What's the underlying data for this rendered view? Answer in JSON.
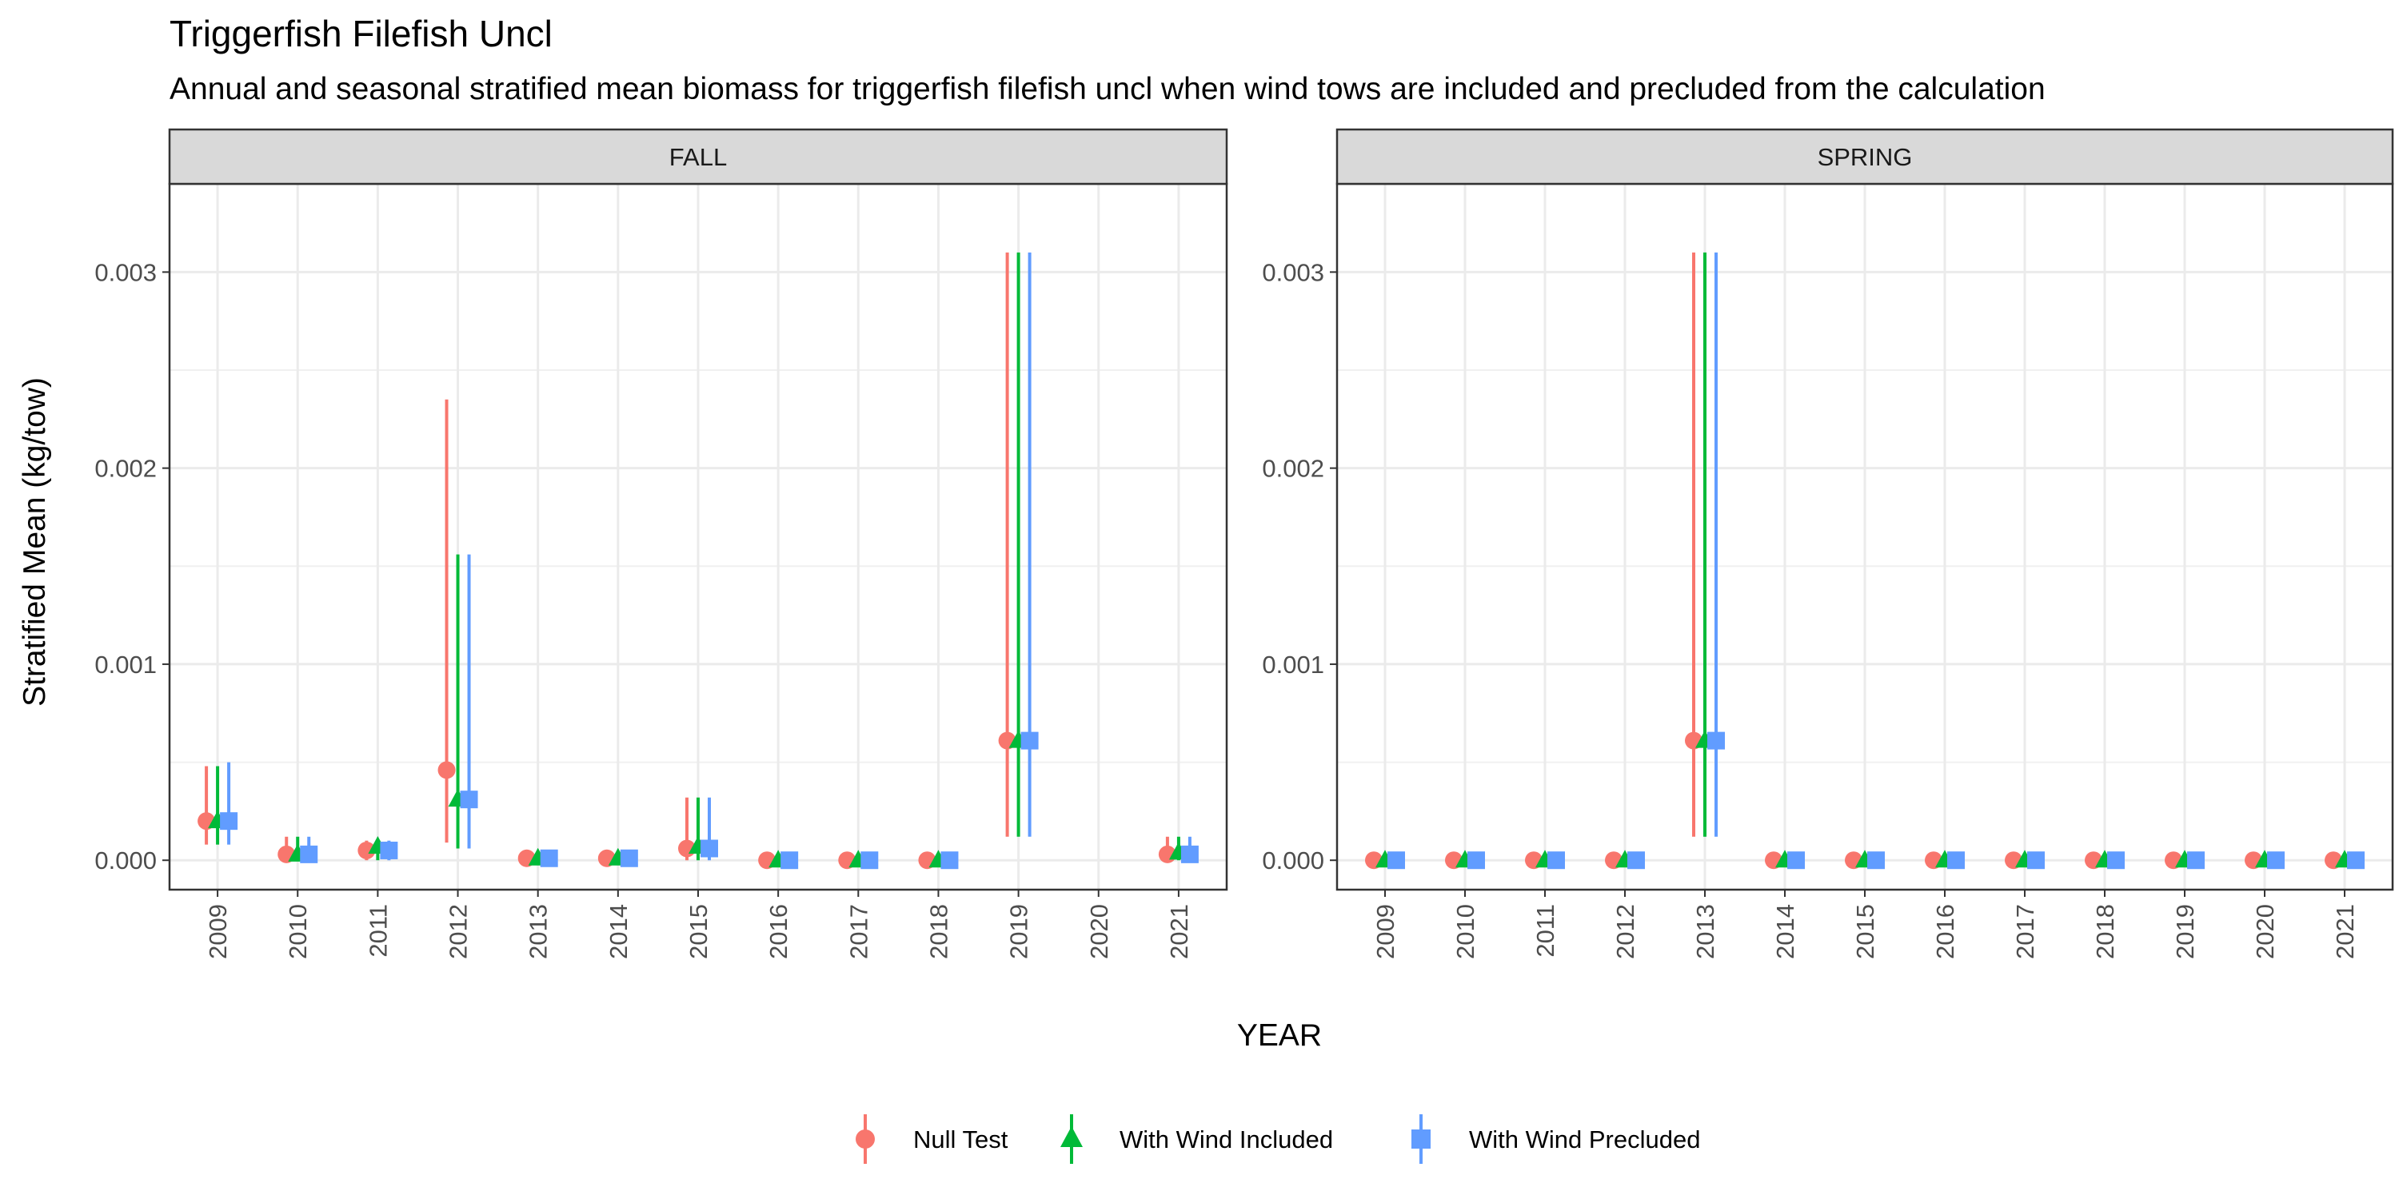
{
  "chart_data": {
    "type": "scatter",
    "title": "Triggerfish Filefish Uncl",
    "subtitle": "Annual and seasonal stratified mean biomass for triggerfish filefish uncl when wind tows are included and precluded from the calculation",
    "xlabel": "YEAR",
    "ylabel": "Stratified Mean (kg/tow)",
    "ylim": [
      -0.00015,
      0.00345
    ],
    "y_ticks": [
      "0.000",
      "0.001",
      "0.002",
      "0.003"
    ],
    "grid": true,
    "legend_position": "bottom",
    "categories": [
      "2009",
      "2010",
      "2011",
      "2012",
      "2013",
      "2014",
      "2015",
      "2016",
      "2017",
      "2018",
      "2019",
      "2020",
      "2021"
    ],
    "legend": [
      {
        "name": "Null Test",
        "color": "#F8766D",
        "shape": "circle"
      },
      {
        "name": "With Wind Included",
        "color": "#00BA38",
        "shape": "triangle"
      },
      {
        "name": "With Wind Precluded",
        "color": "#619CFF",
        "shape": "square"
      }
    ],
    "panels": [
      {
        "name": "FALL",
        "series": [
          {
            "name": "Null Test",
            "values": [
              0.0002,
              3e-05,
              5e-05,
              0.00046,
              1e-05,
              1e-05,
              6e-05,
              0.0,
              0.0,
              0.0,
              0.00061,
              null,
              3e-05
            ],
            "lower": [
              8e-05,
              0.0,
              0.0,
              9e-05,
              0.0,
              0.0,
              0.0,
              0.0,
              0.0,
              0.0,
              0.00012,
              null,
              0.0
            ],
            "upper": [
              0.00048,
              0.00012,
              0.0001,
              0.00235,
              3e-05,
              3e-05,
              0.00032,
              0.0,
              0.0,
              0.0,
              0.0031,
              null,
              0.00012
            ]
          },
          {
            "name": "With Wind Included",
            "values": [
              0.0002,
              3e-05,
              7e-05,
              0.00031,
              1e-05,
              1e-05,
              7e-05,
              0.0,
              0.0,
              0.0,
              0.00061,
              null,
              4e-05
            ],
            "lower": [
              8e-05,
              0.0,
              0.0,
              6e-05,
              0.0,
              0.0,
              0.0,
              0.0,
              0.0,
              0.0,
              0.00012,
              null,
              0.0
            ],
            "upper": [
              0.00048,
              0.00012,
              0.0001,
              0.00156,
              3e-05,
              3e-05,
              0.00032,
              0.0,
              0.0,
              0.0,
              0.0031,
              null,
              0.00012
            ]
          },
          {
            "name": "With Wind Precluded",
            "values": [
              0.0002,
              3e-05,
              5e-05,
              0.00031,
              1e-05,
              1e-05,
              6e-05,
              0.0,
              0.0,
              0.0,
              0.00061,
              null,
              3e-05
            ],
            "lower": [
              8e-05,
              0.0,
              0.0,
              6e-05,
              0.0,
              0.0,
              0.0,
              0.0,
              0.0,
              0.0,
              0.00012,
              null,
              0.0
            ],
            "upper": [
              0.0005,
              0.00012,
              0.0001,
              0.00156,
              3e-05,
              3e-05,
              0.00032,
              0.0,
              0.0,
              0.0,
              0.0031,
              null,
              0.00012
            ]
          }
        ]
      },
      {
        "name": "SPRING",
        "series": [
          {
            "name": "Null Test",
            "values": [
              0.0,
              0.0,
              0.0,
              0.0,
              0.00061,
              0.0,
              0.0,
              0.0,
              0.0,
              0.0,
              0.0,
              0.0,
              0.0
            ],
            "lower": [
              0.0,
              0.0,
              0.0,
              0.0,
              0.00012,
              0.0,
              0.0,
              0.0,
              0.0,
              0.0,
              0.0,
              0.0,
              0.0
            ],
            "upper": [
              0.0,
              0.0,
              0.0,
              0.0,
              0.0031,
              0.0,
              0.0,
              0.0,
              0.0,
              0.0,
              0.0,
              0.0,
              0.0
            ]
          },
          {
            "name": "With Wind Included",
            "values": [
              0.0,
              0.0,
              0.0,
              0.0,
              0.00061,
              0.0,
              0.0,
              0.0,
              0.0,
              0.0,
              0.0,
              0.0,
              0.0
            ],
            "lower": [
              0.0,
              0.0,
              0.0,
              0.0,
              0.00012,
              0.0,
              0.0,
              0.0,
              0.0,
              0.0,
              0.0,
              0.0,
              0.0
            ],
            "upper": [
              0.0,
              0.0,
              0.0,
              0.0,
              0.0031,
              0.0,
              0.0,
              0.0,
              0.0,
              0.0,
              0.0,
              0.0,
              0.0
            ]
          },
          {
            "name": "With Wind Precluded",
            "values": [
              0.0,
              0.0,
              0.0,
              0.0,
              0.00061,
              0.0,
              0.0,
              0.0,
              0.0,
              0.0,
              0.0,
              0.0,
              0.0
            ],
            "lower": [
              0.0,
              0.0,
              0.0,
              0.0,
              0.00012,
              0.0,
              0.0,
              0.0,
              0.0,
              0.0,
              0.0,
              0.0,
              0.0
            ],
            "upper": [
              0.0,
              0.0,
              0.0,
              0.0,
              0.0031,
              0.0,
              0.0,
              0.0,
              0.0,
              0.0,
              0.0,
              0.0,
              0.0
            ]
          }
        ]
      }
    ]
  }
}
